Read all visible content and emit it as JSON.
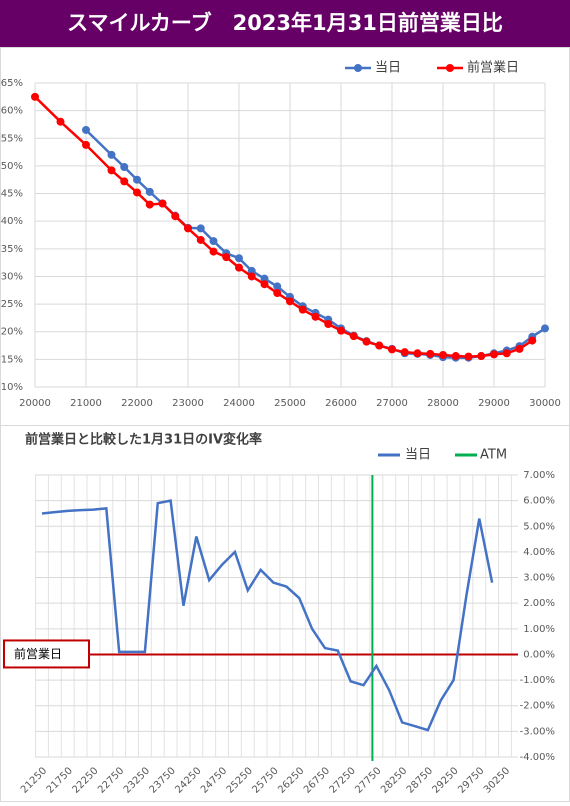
{
  "header": {
    "title": "スマイルカーブ　2023年1月31日前営業日比"
  },
  "chart_data": [
    {
      "type": "line",
      "xlim": [
        20000,
        30000
      ],
      "xticks": [
        20000,
        21000,
        22000,
        23000,
        24000,
        25000,
        26000,
        27000,
        28000,
        29000,
        30000
      ],
      "ylim": [
        10,
        65
      ],
      "yticks": [
        {
          "value": 10,
          "label": "10%"
        },
        {
          "value": 15,
          "label": "15%"
        },
        {
          "value": 20,
          "label": "20%"
        },
        {
          "value": 25,
          "label": "25%"
        },
        {
          "value": 30,
          "label": "30%"
        },
        {
          "value": 35,
          "label": "35%"
        },
        {
          "value": 40,
          "label": "40%"
        },
        {
          "value": 45,
          "label": "45%"
        },
        {
          "value": 50,
          "label": "50%"
        },
        {
          "value": 55,
          "label": "55%"
        },
        {
          "value": 60,
          "label": "60%"
        },
        {
          "value": 65,
          "label": "65%"
        }
      ],
      "grid": true,
      "legend": "top",
      "series": [
        {
          "name": "当日",
          "color": "#4472c4",
          "x": [
            21000,
            21500,
            21750,
            22000,
            22250,
            22500,
            22750,
            23000,
            23250,
            23500,
            23750,
            24000,
            24250,
            24500,
            24750,
            25000,
            25250,
            25500,
            25750,
            26000,
            26250,
            26500,
            26750,
            27000,
            27250,
            27500,
            27750,
            28000,
            28250,
            28500,
            28750,
            29000,
            29250,
            29500,
            29750,
            30000
          ],
          "values": [
            56.5,
            52,
            49.8,
            47.5,
            45.3,
            43.2,
            41,
            38.8,
            38.7,
            36.4,
            34.2,
            33.3,
            31,
            29.6,
            28.2,
            26.3,
            24.6,
            23.4,
            22.2,
            20.6,
            19.3,
            18.3,
            17.5,
            16.9,
            16.1,
            16,
            15.8,
            15.4,
            15.3,
            15.3,
            15.6,
            16.1,
            16.6,
            17.4,
            19.1,
            20.6
          ]
        },
        {
          "name": "前営業日",
          "color": "#ff0000",
          "x": [
            20000,
            20500,
            21000,
            21500,
            21750,
            22000,
            22250,
            22500,
            22750,
            23000,
            23250,
            23500,
            23750,
            24000,
            24250,
            24500,
            24750,
            25000,
            25250,
            25500,
            25750,
            26000,
            26250,
            26500,
            26750,
            27000,
            27250,
            27500,
            27750,
            28000,
            28250,
            28500,
            28750,
            29000,
            29250,
            29500,
            29750
          ],
          "values": [
            62.5,
            58,
            53.8,
            49.2,
            47.2,
            45.2,
            43,
            43.2,
            40.9,
            38.7,
            36.6,
            34.5,
            33.5,
            31.6,
            30,
            28.6,
            27,
            25.5,
            24,
            22.7,
            21.4,
            20.2,
            19.2,
            18.2,
            17.5,
            16.8,
            16.3,
            16.1,
            16,
            15.8,
            15.6,
            15.5,
            15.6,
            15.9,
            16.1,
            16.9,
            18.4
          ]
        }
      ]
    },
    {
      "type": "line",
      "title": "前営業日と比較した1月31日のIV変化率",
      "categories": [
        21250,
        null,
        21750,
        null,
        22250,
        null,
        22750,
        null,
        23250,
        null,
        23750,
        null,
        24250,
        null,
        24750,
        null,
        25250,
        null,
        25750,
        null,
        26250,
        null,
        26750,
        null,
        27250,
        null,
        27750,
        null,
        28250,
        null,
        28750,
        null,
        29250,
        null,
        29750,
        null,
        30250
      ],
      "ylim": [
        -4,
        7
      ],
      "yticks": [
        {
          "value": -4,
          "label": "-4.00%"
        },
        {
          "value": -3,
          "label": "-3.00%"
        },
        {
          "value": -2,
          "label": "-2.00%"
        },
        {
          "value": -1,
          "label": "-1.00%"
        },
        {
          "value": 0,
          "label": "0.00%"
        },
        {
          "value": 1,
          "label": "1.00%"
        },
        {
          "value": 2,
          "label": "2.00%"
        },
        {
          "value": 3,
          "label": "3.00%"
        },
        {
          "value": 4,
          "label": "4.00%"
        },
        {
          "value": 5,
          "label": "5.00%"
        },
        {
          "value": 6,
          "label": "6.00%"
        },
        {
          "value": 7,
          "label": "7.00%"
        }
      ],
      "y_axis_side": "right",
      "grid": true,
      "legend": "top",
      "series": [
        {
          "name": "当日",
          "color": "#4472c4",
          "values": [
            5.5,
            5.55,
            5.6,
            5.63,
            5.65,
            5.7,
            0.1,
            0.1,
            0.1,
            5.9,
            6.0,
            1.9,
            4.6,
            2.9,
            3.5,
            4.0,
            2.5,
            3.3,
            2.8,
            2.65,
            2.2,
            1.0,
            0.25,
            0.15,
            -1.05,
            -1.2,
            -0.45,
            -1.4,
            -2.65,
            -2.8,
            -2.95,
            -1.8,
            -1.0,
            2.3,
            5.3,
            2.8,
            null
          ]
        }
      ],
      "reference_line": {
        "name": "ATM",
        "color": "#00b050",
        "x": 27750
      },
      "baseline": {
        "label": "前営業日",
        "value": 0,
        "color": "#c00000"
      }
    }
  ]
}
